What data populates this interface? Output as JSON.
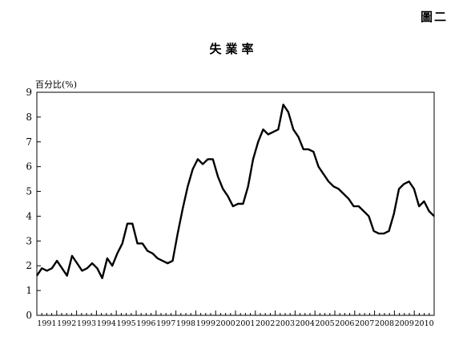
{
  "figure_label": "圖二",
  "chart_data": {
    "type": "line",
    "title": "失業率",
    "ylabel": "百分比(%)",
    "xlabel": "",
    "ylim": [
      0,
      9
    ],
    "yticks": [
      0,
      1,
      2,
      3,
      4,
      5,
      6,
      7,
      8,
      9
    ],
    "xticks": [
      "1991",
      "1992",
      "1993",
      "1994",
      "1995",
      "1996",
      "1997",
      "1998",
      "1999",
      "2000",
      "2001",
      "2002",
      "2003",
      "2004",
      "2005",
      "2006",
      "2007",
      "2008",
      "2009",
      "2010"
    ],
    "x_start_year": 1991,
    "x_end_year": 2010,
    "grid": false,
    "line_color": "#000000",
    "series": [
      {
        "values": [
          1.6,
          1.9,
          1.8,
          1.9,
          2.2,
          1.9,
          1.6,
          2.4,
          2.1,
          1.8,
          1.9,
          2.1,
          1.9,
          1.5,
          2.3,
          2.0,
          2.5,
          2.9,
          3.7,
          3.7,
          2.9,
          2.9,
          2.6,
          2.5,
          2.3,
          2.2,
          2.1,
          2.2,
          3.3,
          4.3,
          5.2,
          5.9,
          6.3,
          6.1,
          6.3,
          6.3,
          5.6,
          5.1,
          4.8,
          4.4,
          4.5,
          4.5,
          5.2,
          6.3,
          7.0,
          7.5,
          7.3,
          7.4,
          7.5,
          8.5,
          8.2,
          7.5,
          7.2,
          6.7,
          6.7,
          6.6,
          6.0,
          5.7,
          5.4,
          5.2,
          5.1,
          4.9,
          4.7,
          4.4,
          4.4,
          4.2,
          4.0,
          3.4,
          3.3,
          3.3,
          3.4,
          4.1,
          5.1,
          5.3,
          5.4,
          5.1,
          4.4,
          4.6,
          4.2,
          4.0
        ]
      }
    ]
  }
}
